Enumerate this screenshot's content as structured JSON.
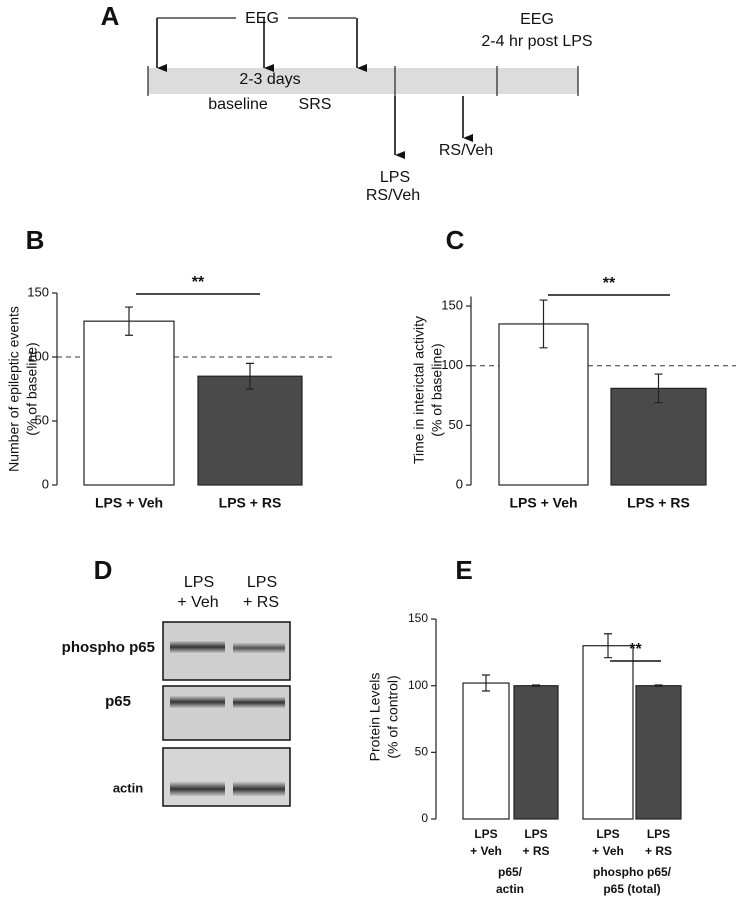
{
  "timeline": {
    "label": "A",
    "eeg_top": "EEG",
    "eeg_right": "EEG",
    "eeg_right_note": "2-4 hr post LPS",
    "duration": "2-3 days",
    "baseline": "baseline",
    "srs": "SRS",
    "lps": "LPS",
    "lps_treat": "RS/Veh",
    "treat": "RS/Veh"
  },
  "blot": {
    "label": "D",
    "columns": [
      [
        "LPS",
        "+ Veh"
      ],
      [
        "LPS",
        "+ RS"
      ]
    ],
    "rows": [
      "phospho p65",
      "p65",
      "actin"
    ]
  },
  "chart_data": [
    {
      "type": "bar",
      "label": "B",
      "ylabel": [
        "Number of epileptic events",
        "(% of baseline)"
      ],
      "categories": [
        [
          "LPS + Veh"
        ],
        [
          "LPS + RS"
        ]
      ],
      "values": [
        128,
        85
      ],
      "errors": [
        11,
        10
      ],
      "colors": [
        "#ffffff",
        "#4a4a4a"
      ],
      "ylim": [
        0,
        150
      ],
      "yticks": [
        0,
        50,
        100,
        150
      ],
      "ref_line": 100,
      "annotation": "**"
    },
    {
      "type": "bar",
      "label": "C",
      "ylabel": [
        "Time in interictal activity",
        "(% of baseline)"
      ],
      "categories": [
        [
          "LPS + Veh"
        ],
        [
          "LPS + RS"
        ]
      ],
      "values": [
        135,
        81
      ],
      "errors": [
        20,
        12
      ],
      "colors": [
        "#ffffff",
        "#4a4a4a"
      ],
      "ylim": [
        0,
        158
      ],
      "yticks": [
        0,
        50,
        100,
        150
      ],
      "ref_line": 100,
      "annotation": "**"
    },
    {
      "type": "bar",
      "label": "E",
      "ylabel": [
        "Protein Levels",
        "(% of control)"
      ],
      "categories": [
        [
          "LPS",
          "+ Veh"
        ],
        [
          "LPS",
          "+ RS"
        ],
        [
          "LPS",
          "+ Veh"
        ],
        [
          "LPS",
          "+ RS"
        ]
      ],
      "groups": [
        [
          "p65/",
          "actin"
        ],
        [
          "phospho p65/",
          "p65 (total)"
        ]
      ],
      "values": [
        102,
        100,
        130,
        100
      ],
      "errors": [
        6,
        0.5,
        9,
        0.5
      ],
      "colors": [
        "#ffffff",
        "#4a4a4a",
        "#ffffff",
        "#4a4a4a"
      ],
      "ylim": [
        0,
        150
      ],
      "yticks": [
        0,
        50,
        100,
        150
      ],
      "annotation": "**"
    }
  ]
}
